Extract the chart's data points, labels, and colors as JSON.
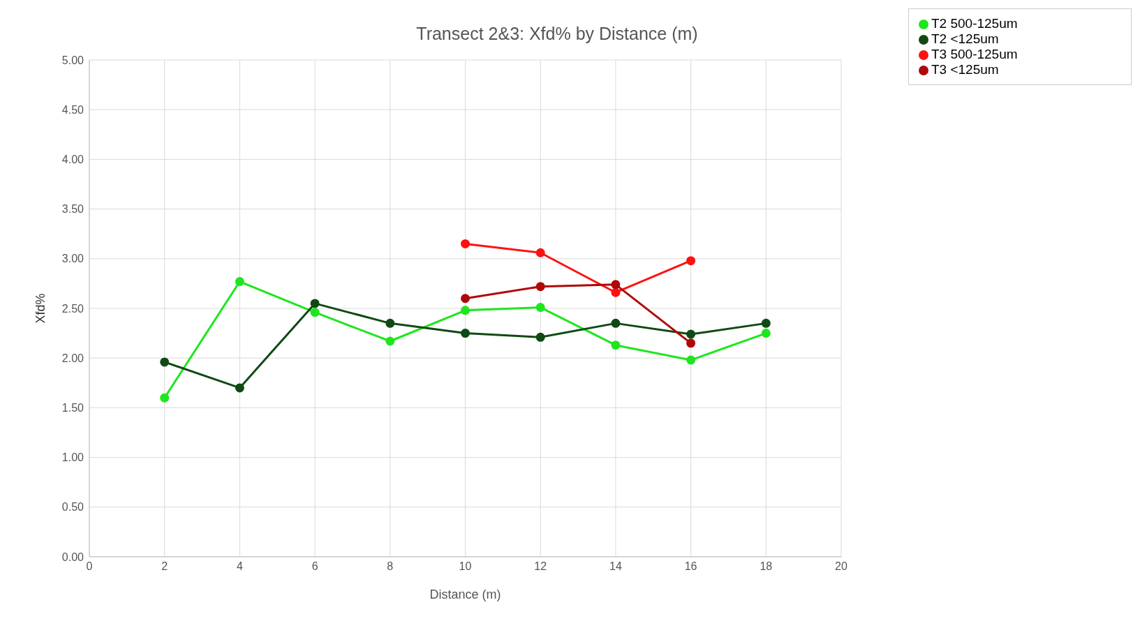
{
  "chart_data": {
    "type": "line",
    "title": "Transect 2&3: Xfd% by Distance (m)",
    "xlabel": "Distance (m)",
    "ylabel": "Xfd%",
    "x": [
      2,
      4,
      6,
      8,
      10,
      12,
      14,
      16,
      18
    ],
    "series": [
      {
        "name": "T2 500-125um",
        "color": "#1ee61e",
        "values": [
          1.6,
          2.77,
          2.46,
          2.17,
          2.48,
          2.51,
          2.13,
          1.98,
          2.25
        ]
      },
      {
        "name": "T2 <125um",
        "color": "#0f4a14",
        "values": [
          1.96,
          1.7,
          2.55,
          2.35,
          2.25,
          2.21,
          2.35,
          2.24,
          2.35
        ]
      },
      {
        "name": "T3 500-125um",
        "color": "#ff1010",
        "values": [
          null,
          null,
          null,
          null,
          3.15,
          3.06,
          2.66,
          2.98,
          null
        ]
      },
      {
        "name": "T3 <125um",
        "color": "#b00808",
        "values": [
          null,
          null,
          null,
          null,
          2.6,
          2.72,
          2.74,
          2.15,
          null
        ]
      }
    ],
    "xlim": [
      0,
      20
    ],
    "xticks": [
      0,
      2,
      4,
      6,
      8,
      10,
      12,
      14,
      16,
      18,
      20
    ],
    "ylim": [
      0,
      5
    ],
    "yticks": [
      {
        "value": 0,
        "label": "0.00"
      },
      {
        "value": 0.5,
        "label": "0.50"
      },
      {
        "value": 1,
        "label": "1.00"
      },
      {
        "value": 1.5,
        "label": "1.50"
      },
      {
        "value": 2,
        "label": "2.00"
      },
      {
        "value": 2.5,
        "label": "2.50"
      },
      {
        "value": 3,
        "label": "3.00"
      },
      {
        "value": 3.5,
        "label": "3.50"
      },
      {
        "value": 4,
        "label": "4.00"
      },
      {
        "value": 4.5,
        "label": "4.50"
      },
      {
        "value": 5,
        "label": "5.00"
      }
    ],
    "grid": true,
    "legend": "top right",
    "marker": "circle",
    "line_style": "solid"
  }
}
